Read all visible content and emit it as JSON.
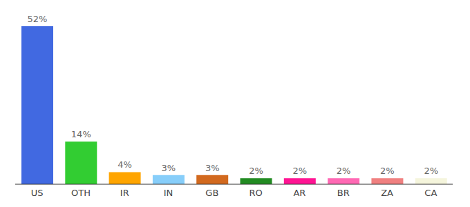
{
  "chart_data": {
    "type": "bar",
    "categories": [
      "US",
      "OTH",
      "IR",
      "IN",
      "GB",
      "RO",
      "AR",
      "BR",
      "ZA",
      "CA"
    ],
    "values": [
      52,
      14,
      4,
      3,
      3,
      2,
      2,
      2,
      2,
      2
    ],
    "value_labels": [
      "52%",
      "14%",
      "4%",
      "3%",
      "3%",
      "2%",
      "2%",
      "2%",
      "2%",
      "2%"
    ],
    "colors": [
      "#4169e1",
      "#32cd32",
      "#ffa500",
      "#87cefa",
      "#d2691e",
      "#228b22",
      "#ff1493",
      "#ff69b4",
      "#f08080",
      "#f5f5dc"
    ],
    "data_labels": true,
    "tick_labels": "x"
  }
}
